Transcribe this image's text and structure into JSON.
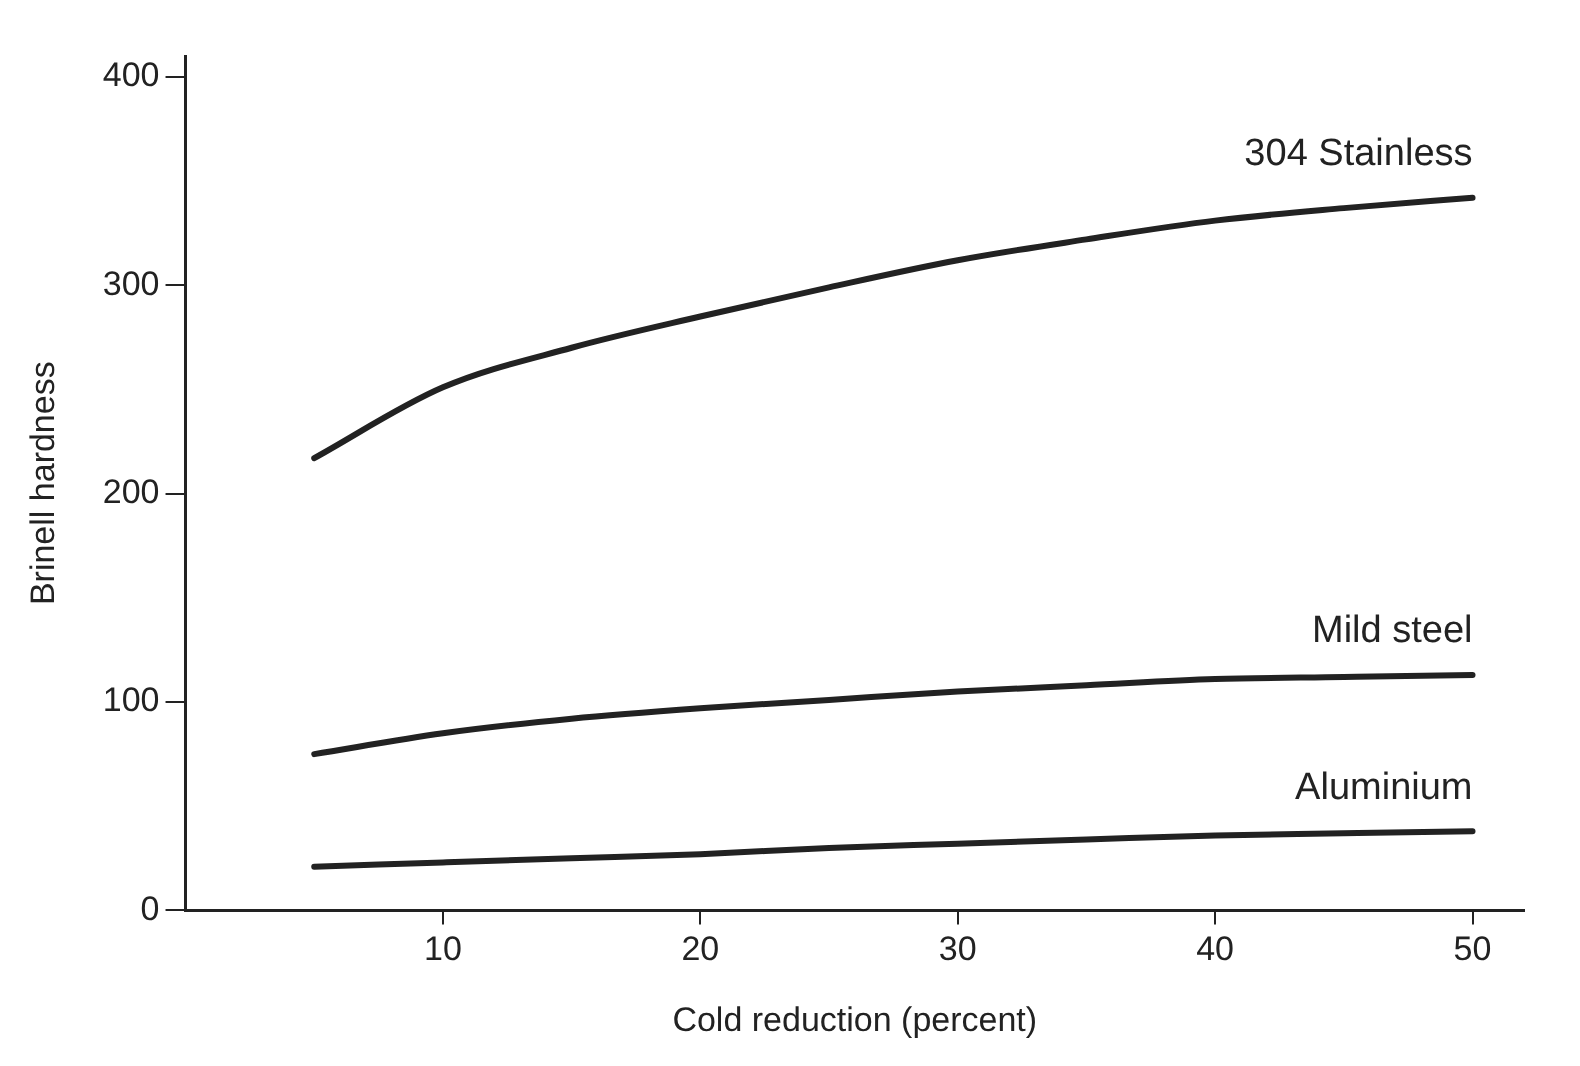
{
  "chart_data": {
    "type": "line",
    "xlabel": "Cold reduction (percent)",
    "ylabel": "Brinell hardness",
    "xlim": [
      0,
      52
    ],
    "xticks": [
      10,
      20,
      30,
      40,
      50
    ],
    "ylim": [
      0,
      410
    ],
    "yticks": [
      0,
      100,
      200,
      300,
      400
    ],
    "grid": false,
    "legend": false,
    "marker": "none",
    "line_style": "solid",
    "x": [
      5,
      10,
      15,
      20,
      25,
      30,
      35,
      40,
      45,
      50
    ],
    "series": [
      {
        "name": "304 Stainless",
        "color": "#222222",
        "values": [
          217,
          251,
          270,
          285,
          299,
          312,
          322,
          331,
          337,
          342
        ]
      },
      {
        "name": "Mild steel",
        "color": "#222222",
        "values": [
          75,
          85,
          92,
          97,
          101,
          105,
          108,
          111,
          112,
          113
        ]
      },
      {
        "name": "Aluminium",
        "color": "#222222",
        "values": [
          21,
          23,
          25,
          27,
          30,
          32,
          34,
          36,
          37,
          38
        ]
      }
    ]
  }
}
